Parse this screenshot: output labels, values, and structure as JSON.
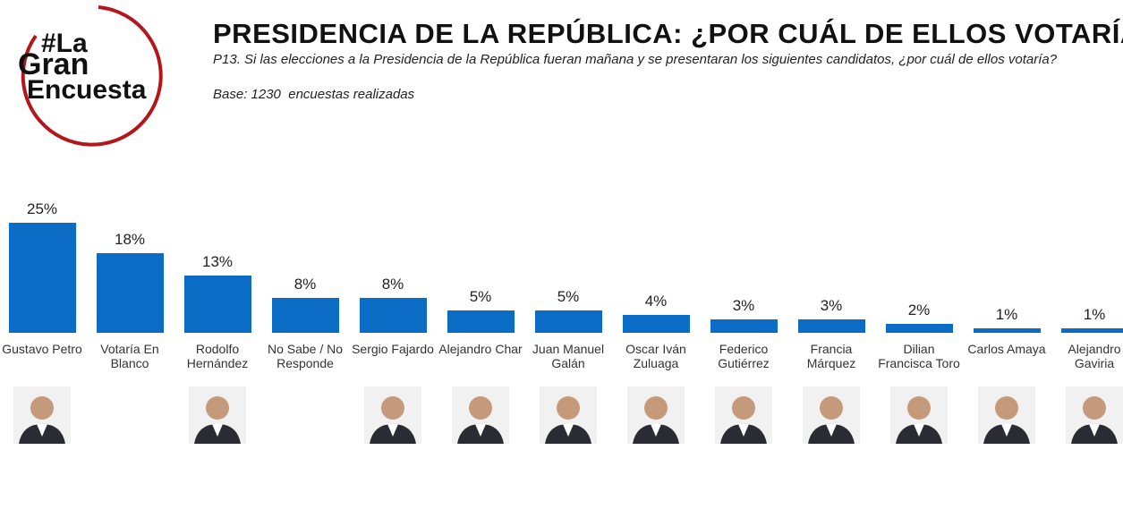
{
  "logo": [
    "#La",
    "Gran",
    "Encuesta"
  ],
  "header": {
    "title": "PRESIDENCIA DE LA REPÚBLICA: ¿POR CUÁL DE ELLOS VOTARÍA?",
    "question": "P13. Si las elecciones a la Presidencia de la República fueran mañana y se presentaran los siguientes candidatos, ¿por cuál de ellos votaría?",
    "base": "Base: 1230  encuestas realizadas"
  },
  "chart_data": {
    "type": "bar",
    "color": "#0a6cc4",
    "categories": [
      "Gustavo Petro",
      "Votaría En Blanco",
      "Rodolfo Hernández",
      "No Sabe / No Responde",
      "Sergio Fajardo",
      "Alejandro Char",
      "Juan Manuel Galán",
      "Oscar Iván Zuluaga",
      "Federico Gutiérrez",
      "Francia Márquez",
      "Dilian Francisca Toro",
      "Carlos Amaya",
      "Alejandro Gaviria"
    ],
    "values": [
      25,
      18,
      13,
      8,
      8,
      5,
      5,
      4,
      3,
      3,
      2,
      1,
      1
    ],
    "value_labels": [
      "25%",
      "18%",
      "13%",
      "8%",
      "8%",
      "5%",
      "5%",
      "4%",
      "3%",
      "3%",
      "2%",
      "1%",
      "1%"
    ]
  }
}
